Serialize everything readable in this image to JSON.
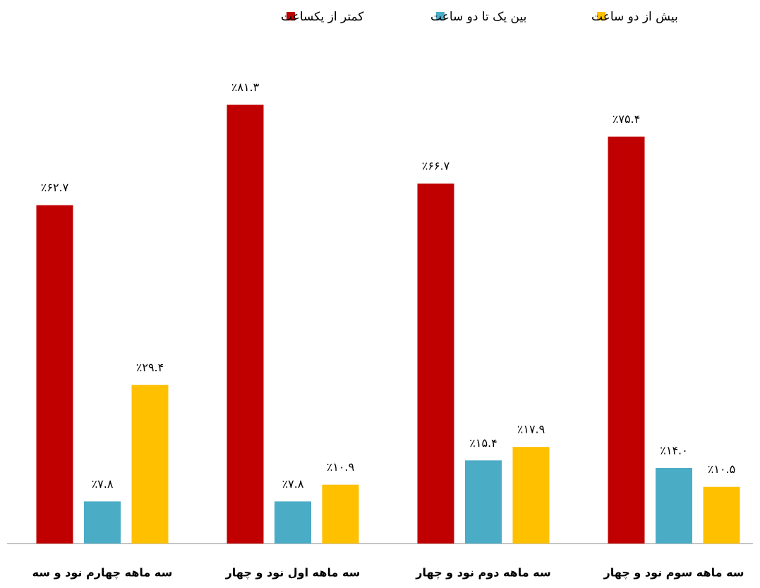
{
  "chart_data": {
    "type": "bar",
    "categories": [
      "سه ماهه چهارم  نود و سه",
      "سه ماهه اول  نود و چهار",
      "سه ماهه دوم  نود و چهار",
      "سه ماهه سوم  نود و چهار"
    ],
    "series": [
      {
        "name": "کمتر از یکساعت",
        "color": "#c00000",
        "values": [
          62.7,
          81.3,
          66.7,
          75.4
        ],
        "value_labels": [
          "٪۶۲.۷",
          "٪۸۱.۳",
          "٪۶۶.۷",
          "٪۷۵.۴"
        ]
      },
      {
        "name": "بین یک تا دو ساعت",
        "color": "#4bacc6",
        "values": [
          7.8,
          7.8,
          15.4,
          14.0
        ],
        "value_labels": [
          "٪۷.۸",
          "٪۷.۸",
          "٪۱۵.۴",
          "٪۱۴.۰"
        ]
      },
      {
        "name": "بیش از دو ساعت",
        "color": "#ffc000",
        "values": [
          29.4,
          10.9,
          17.9,
          10.5
        ],
        "value_labels": [
          "٪۲۹.۴",
          "٪۱۰.۹",
          "٪۱۷.۹",
          "٪۱۰.۵"
        ]
      }
    ],
    "ylim": [
      0,
      90
    ],
    "legend": "top"
  }
}
